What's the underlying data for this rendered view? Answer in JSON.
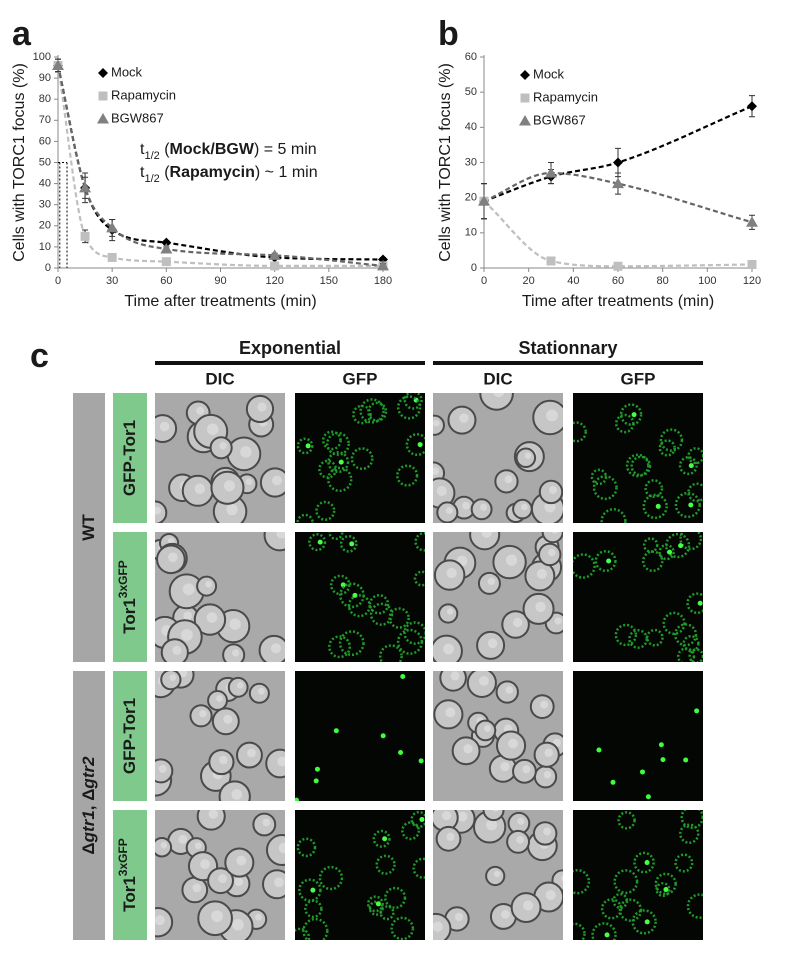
{
  "chart_data": [
    {
      "type": "scatter",
      "label": "a",
      "xlabel": "Time after treatments (min)",
      "ylabel": "Cells with TORC1 focus (%)",
      "xlim": [
        0,
        180
      ],
      "xticks": [
        0,
        30,
        60,
        90,
        120,
        150,
        180
      ],
      "ylim": [
        0,
        100
      ],
      "yticks": [
        0,
        10,
        20,
        30,
        40,
        50,
        60,
        70,
        80,
        90,
        100
      ],
      "series": [
        {
          "name": "Mock",
          "color": "#000000",
          "marker": "diamond",
          "x": [
            0,
            15,
            30,
            60,
            120,
            180
          ],
          "values": [
            96,
            38,
            18,
            12,
            5,
            4
          ],
          "errors": [
            3,
            7,
            5,
            1,
            1,
            1
          ]
        },
        {
          "name": "Rapamycin",
          "color": "#bfbfbf",
          "marker": "square",
          "x": [
            0,
            15,
            30,
            60,
            120,
            180
          ],
          "values": [
            96,
            15,
            5,
            3,
            1,
            1
          ],
          "errors": [
            3,
            3,
            1,
            1,
            0.5,
            0.5
          ]
        },
        {
          "name": "BGW867",
          "color": "#808080",
          "marker": "triangle",
          "x": [
            0,
            15,
            30,
            60,
            120,
            180
          ],
          "values": [
            96,
            38,
            19,
            9,
            6,
            1
          ],
          "errors": [
            3,
            5,
            4,
            1,
            1,
            1
          ]
        }
      ],
      "annotations": [
        [
          "t",
          "1/2",
          " (",
          "Mock/BGW",
          ") = 5 min"
        ],
        [
          "t",
          "1/2",
          " (",
          "Rapamycin",
          ") ~ 1 min"
        ]
      ],
      "guide_y": 50,
      "guide_x": [
        1,
        5
      ]
    },
    {
      "type": "scatter",
      "label": "b",
      "xlabel": "Time after treatments (min)",
      "ylabel": "Cells with TORC1 focus (%)",
      "xlim": [
        0,
        120
      ],
      "xticks": [
        0,
        20,
        40,
        60,
        80,
        100,
        120
      ],
      "ylim": [
        0,
        60
      ],
      "yticks": [
        0,
        10,
        20,
        30,
        40,
        50,
        60
      ],
      "series": [
        {
          "name": "Mock",
          "color": "#000000",
          "marker": "diamond",
          "x": [
            0,
            30,
            60,
            120
          ],
          "values": [
            19,
            26,
            30,
            46
          ],
          "errors": [
            5,
            2,
            4,
            3
          ]
        },
        {
          "name": "Rapamycin",
          "color": "#bfbfbf",
          "marker": "square",
          "x": [
            0,
            30,
            60,
            120
          ],
          "values": [
            19,
            2,
            0.5,
            1
          ],
          "errors": [
            5,
            0.5,
            0.5,
            0.5
          ]
        },
        {
          "name": "BGW867",
          "color": "#808080",
          "marker": "triangle",
          "x": [
            0,
            30,
            60,
            120
          ],
          "values": [
            19,
            27,
            24,
            13
          ],
          "errors": [
            5,
            3,
            3,
            2
          ]
        }
      ]
    }
  ],
  "panel_c": {
    "label": "c",
    "groups": [
      "Exponential",
      "Stationnary"
    ],
    "columns": [
      "DIC",
      "GFP",
      "DIC",
      "GFP"
    ],
    "strains": [
      [
        "WT"
      ],
      [
        "Δ",
        "gtr1",
        ", Δ",
        "gtr2"
      ]
    ],
    "rows": [
      [
        "GFP-Tor1"
      ],
      [
        "Tor1",
        "3xGFP"
      ],
      [
        "GFP-Tor1"
      ],
      [
        "Tor1",
        "3xGFP"
      ]
    ]
  }
}
